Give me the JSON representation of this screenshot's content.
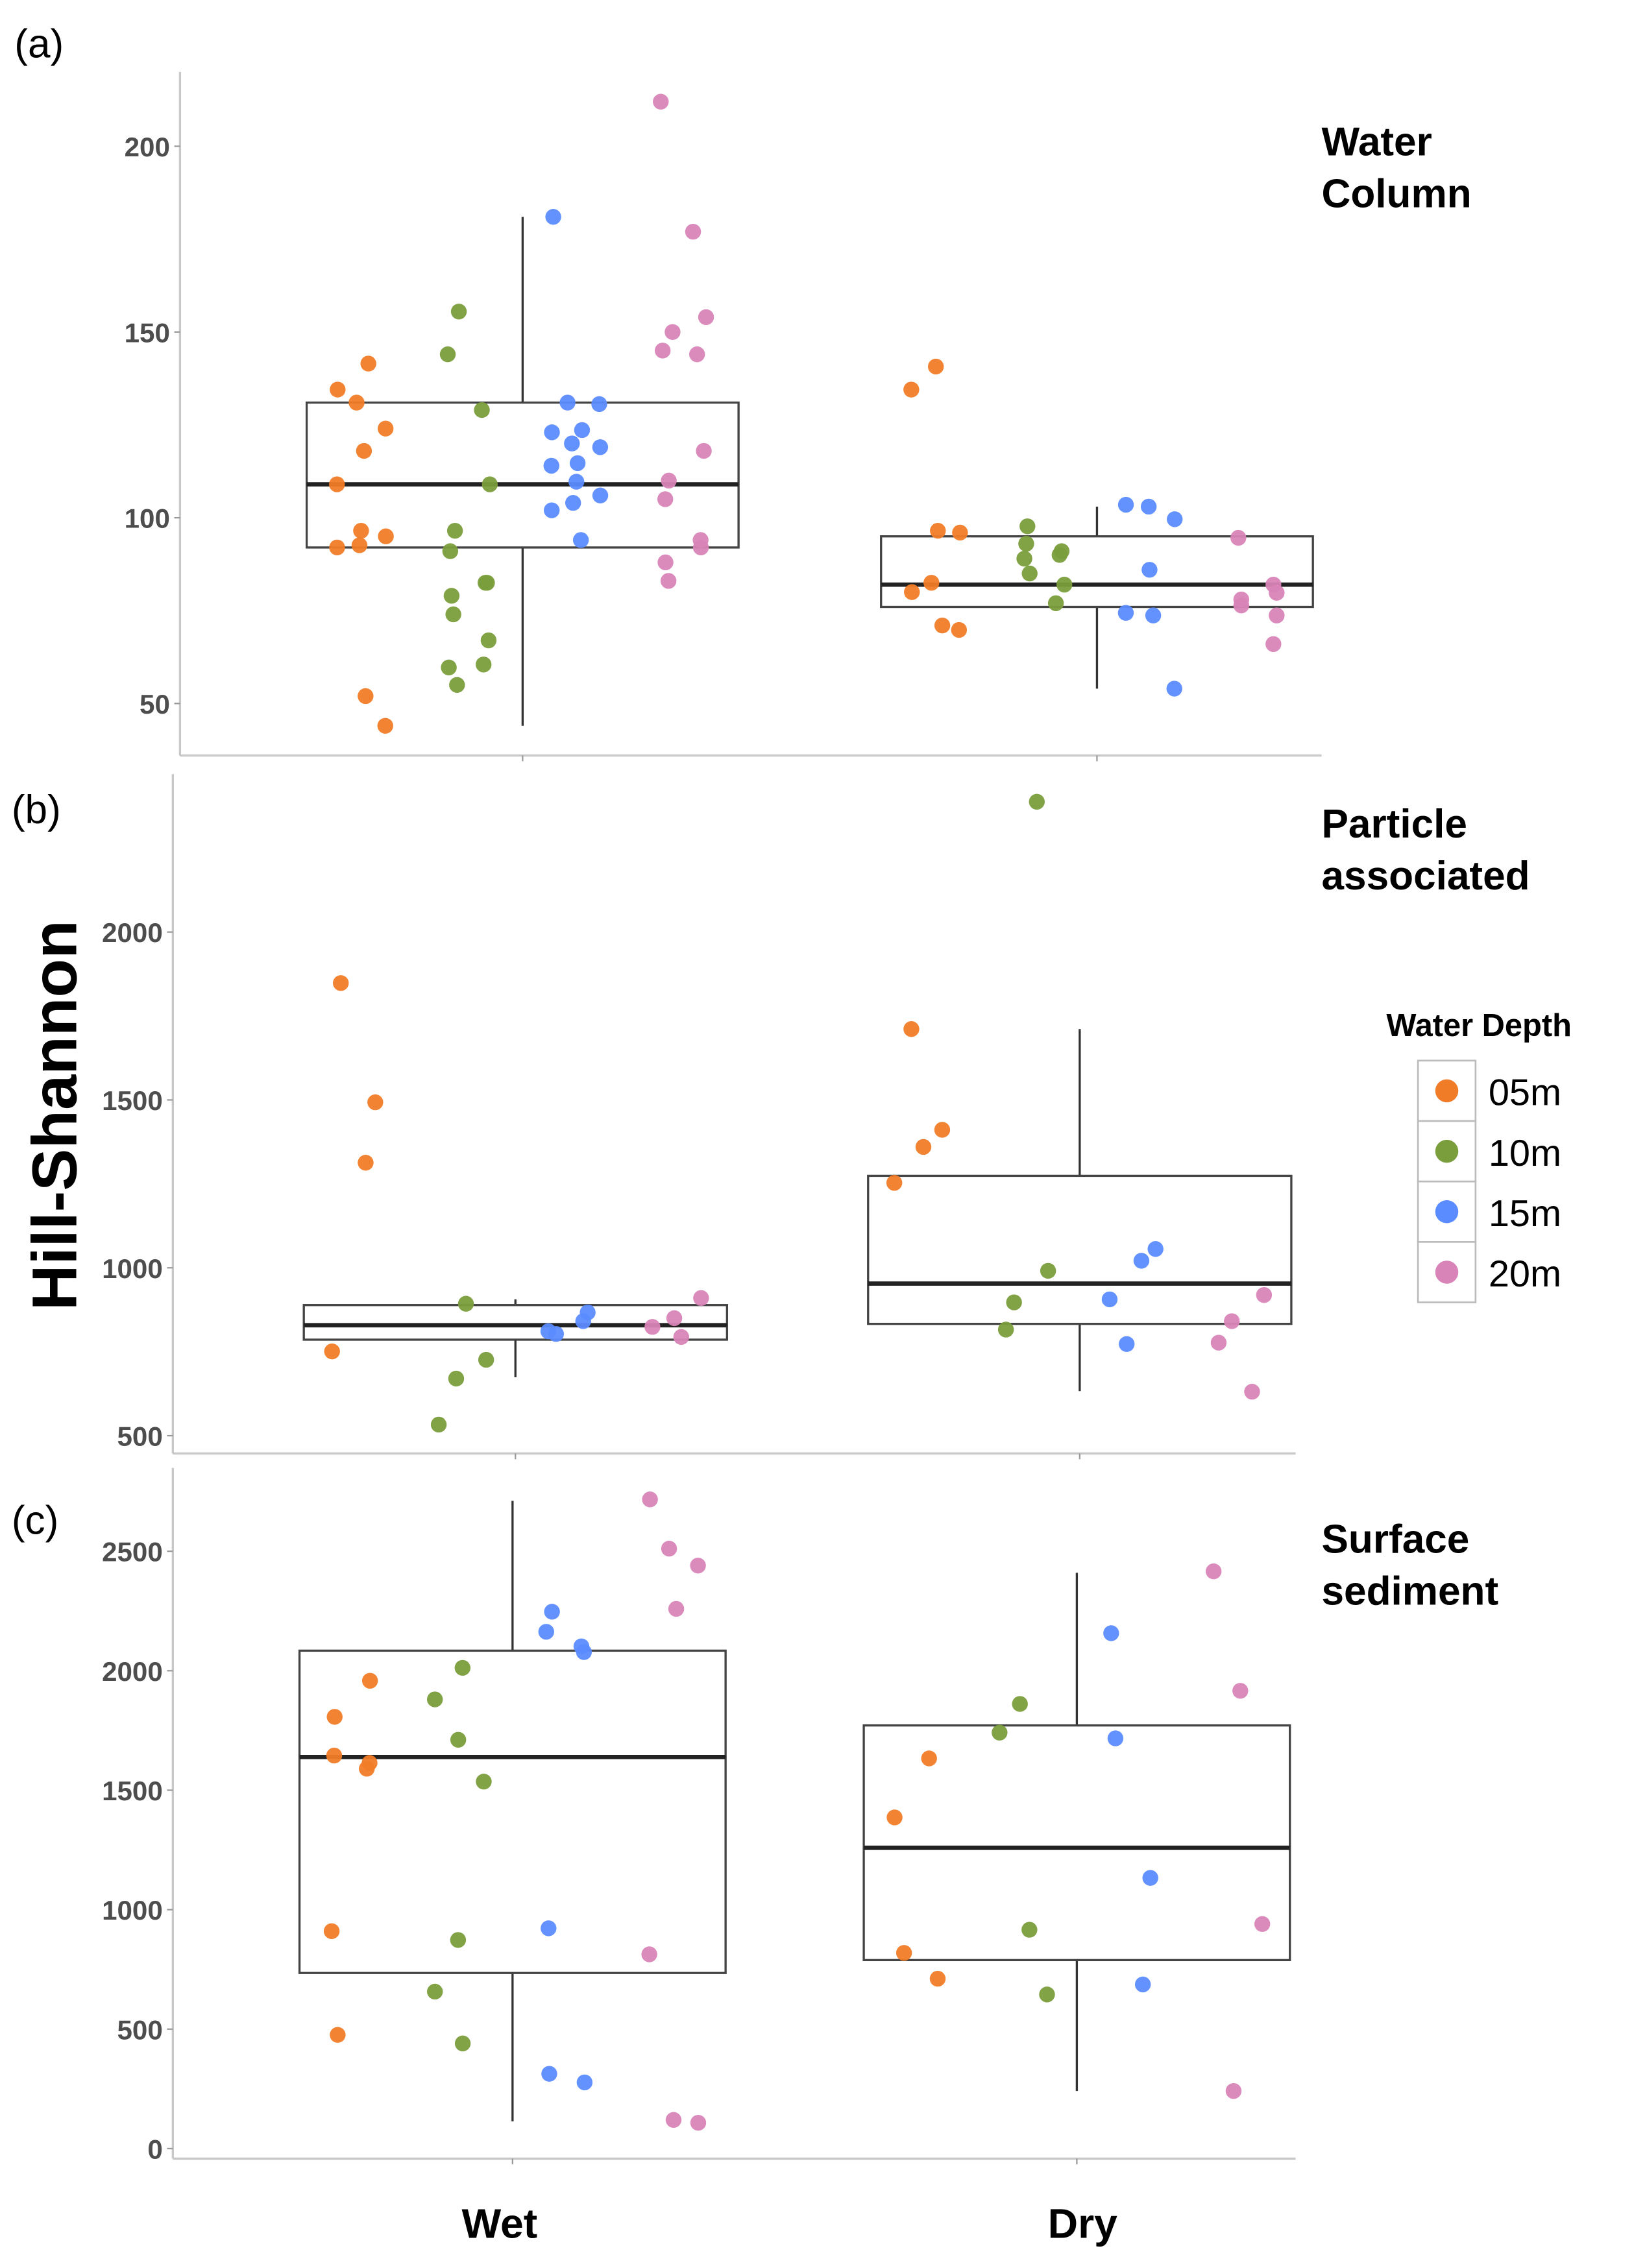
{
  "y_label": "Hill-Shannon",
  "categories": [
    "Wet",
    "Dry"
  ],
  "legend": {
    "title": "Water Depth",
    "items": [
      {
        "label": "05m",
        "color": "#F07C28"
      },
      {
        "label": "10m",
        "color": "#7A9E3C"
      },
      {
        "label": "15m",
        "color": "#5B8CFF"
      },
      {
        "label": "20m",
        "color": "#D984B8"
      }
    ]
  },
  "chart_data": [
    {
      "type": "box+scatter",
      "panel_label": "(a)",
      "title_lines": [
        "Water",
        "Column"
      ],
      "ylim": [
        36,
        220
      ],
      "yticks": [
        50,
        100,
        150,
        200
      ],
      "boxes": {
        "Wet": {
          "min": 44,
          "q1": 92,
          "median": 109,
          "q3": 131,
          "max": 181
        },
        "Dry": {
          "min": 54,
          "q1": 76,
          "median": 82,
          "q3": 95,
          "max": 103
        }
      },
      "points": {
        "Wet": {
          "05m": [
            141.5,
            134.5,
            131,
            124,
            118,
            109,
            96.5,
            95,
            92.6,
            92,
            52,
            44
          ],
          "10m": [
            155.5,
            144,
            129,
            109,
            96.5,
            91,
            82.5,
            82.5,
            79,
            74,
            67,
            60.5,
            59.7,
            55
          ],
          "15m": [
            181,
            131,
            130.6,
            123.6,
            123,
            120,
            119,
            114.7,
            114,
            109.7,
            106,
            104,
            102,
            94
          ],
          "20m": [
            212,
            177,
            154,
            150,
            145,
            144,
            118,
            110,
            105,
            94,
            92,
            88,
            83
          ]
        },
        "Dry": {
          "05m": [
            140.7,
            134.5,
            96.5,
            96,
            82.5,
            80,
            71,
            69.8
          ],
          "10m": [
            97.7,
            93,
            91,
            90,
            89,
            85,
            82,
            77
          ],
          "15m": [
            103.5,
            103,
            99.6,
            86,
            74.4,
            73.7,
            54
          ],
          "20m": [
            94.6,
            82,
            79.8,
            78,
            76.4,
            73.7,
            66
          ]
        }
      }
    },
    {
      "type": "box+scatter",
      "panel_label": "(b)",
      "title_lines": [
        "Particle",
        "associated"
      ],
      "ylim": [
        447,
        2470
      ],
      "yticks": [
        500,
        1000,
        1500,
        2000
      ],
      "boxes": {
        "Wet": {
          "min": 674,
          "q1": 786,
          "median": 829,
          "q3": 889,
          "max": 906
        },
        "Dry": {
          "min": 633,
          "q1": 833,
          "median": 953,
          "q3": 1274,
          "max": 1711
        }
      },
      "points": {
        "Wet": {
          "05m": [
            1848,
            1493,
            1313,
            751
          ],
          "10m": [
            893,
            726,
            670,
            533
          ],
          "15m": [
            867,
            841,
            811,
            803
          ],
          "20m": [
            910,
            850,
            824,
            794
          ]
        },
        "Dry": {
          "05m": [
            1711,
            1411,
            1360,
            1253
          ],
          "10m": [
            2388,
            991,
            897,
            816
          ],
          "15m": [
            1056,
            1021,
            906,
            773
          ],
          "20m": [
            919,
            841,
            777,
            631
          ]
        }
      }
    },
    {
      "type": "box+scatter",
      "panel_label": "(c)",
      "title_lines": [
        "Surface",
        "sediment"
      ],
      "ylim": [
        -42,
        2849
      ],
      "yticks": [
        0,
        500,
        1000,
        1500,
        2000,
        2500
      ],
      "boxes": {
        "Wet": {
          "min": 114,
          "q1": 735,
          "median": 1639,
          "q3": 2084,
          "max": 2711
        },
        "Dry": {
          "min": 241,
          "q1": 789,
          "median": 1259,
          "q3": 1771,
          "max": 2410
        }
      },
      "points": {
        "Wet": {
          "05m": [
            1958,
            1807,
            1645,
            1614,
            1590,
            910,
            476
          ],
          "10m": [
            2012,
            1880,
            1711,
            1536,
            873,
            657,
            440
          ],
          "15m": [
            2247,
            2163,
            2102,
            2078,
            922,
            313,
            277
          ],
          "20m": [
            2717,
            2511,
            2440,
            2259,
            813,
            120,
            108
          ]
        },
        "Dry": {
          "05m": [
            1633,
            1386,
            819,
            711
          ],
          "10m": [
            1861,
            1741,
            916,
            645
          ],
          "15m": [
            2157,
            1717,
            1133,
            687
          ],
          "20m": [
            2416,
            1916,
            940,
            241
          ]
        }
      }
    }
  ]
}
